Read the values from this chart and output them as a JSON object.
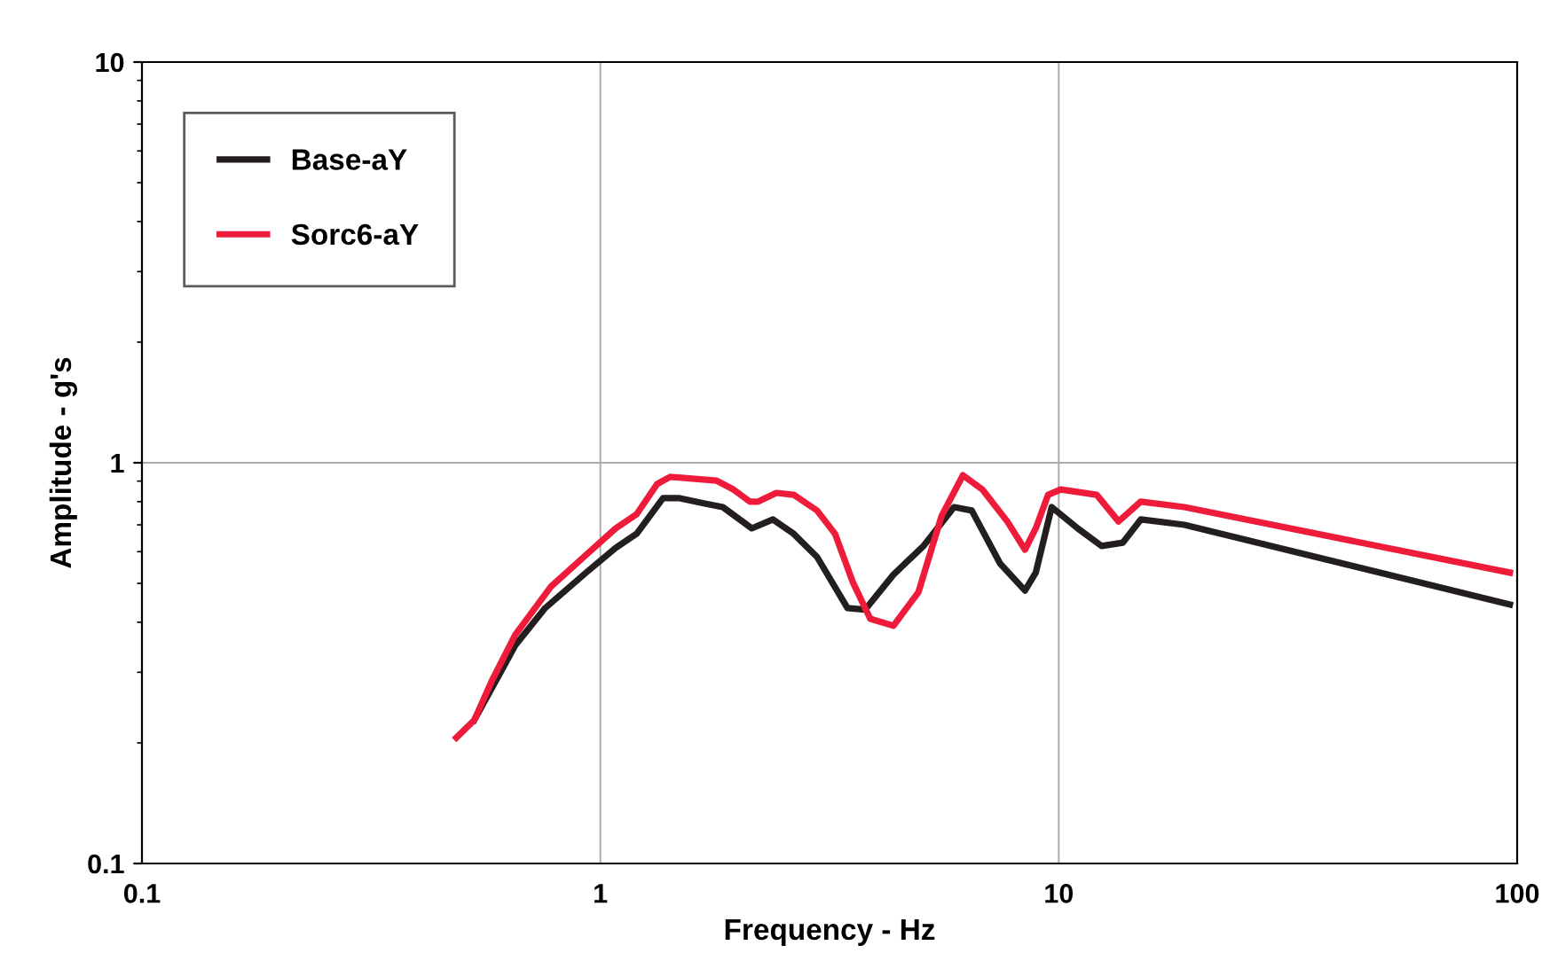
{
  "chart_data": {
    "type": "line",
    "xlabel": "Frequency - Hz",
    "ylabel": "Amplitude - g's",
    "log": "xy",
    "xlim": [
      0.1,
      100
    ],
    "ylim": [
      0.1,
      10
    ],
    "xticks": [
      0.1,
      1,
      10,
      100
    ],
    "yticks": [
      0.1,
      1,
      10
    ],
    "grid": true,
    "legend": "top left",
    "series": [
      {
        "name": "Base-aY",
        "color": "#231f20",
        "x": [
          0.531,
          0.58,
          0.652,
          0.758,
          0.931,
          1.08,
          1.2,
          1.37,
          1.49,
          1.69,
          1.85,
          2.14,
          2.38,
          2.64,
          2.97,
          3.46,
          3.78,
          4.36,
          5.07,
          5.91,
          6.46,
          7.45,
          8.44,
          8.91,
          9.65,
          11.0,
          12.4,
          13.8,
          15.1,
          18.8,
          96.4
        ],
        "values": [
          0.228,
          0.274,
          0.35,
          0.434,
          0.532,
          0.613,
          0.665,
          0.816,
          0.816,
          0.791,
          0.775,
          0.686,
          0.722,
          0.665,
          0.582,
          0.434,
          0.43,
          0.526,
          0.62,
          0.775,
          0.76,
          0.56,
          0.48,
          0.532,
          0.775,
          0.686,
          0.62,
          0.632,
          0.722,
          0.7,
          0.443
        ]
      },
      {
        "name": "Sorc6-aY",
        "color": "#ee1c3a",
        "x": [
          0.485,
          0.531,
          0.58,
          0.652,
          0.779,
          0.931,
          1.08,
          1.2,
          1.33,
          1.42,
          1.79,
          1.95,
          2.12,
          2.21,
          2.42,
          2.64,
          2.97,
          3.25,
          3.55,
          3.88,
          4.36,
          4.94,
          5.55,
          6.18,
          6.81,
          7.72,
          8.44,
          8.91,
          9.48,
          10.1,
          12.1,
          13.5,
          15.1,
          18.8,
          96.4
        ],
        "values": [
          0.206,
          0.228,
          0.286,
          0.372,
          0.49,
          0.589,
          0.686,
          0.744,
          0.885,
          0.922,
          0.903,
          0.858,
          0.8,
          0.8,
          0.841,
          0.832,
          0.76,
          0.665,
          0.505,
          0.408,
          0.392,
          0.475,
          0.736,
          0.931,
          0.858,
          0.714,
          0.607,
          0.686,
          0.832,
          0.858,
          0.832,
          0.714,
          0.8,
          0.775,
          0.532
        ]
      }
    ]
  }
}
